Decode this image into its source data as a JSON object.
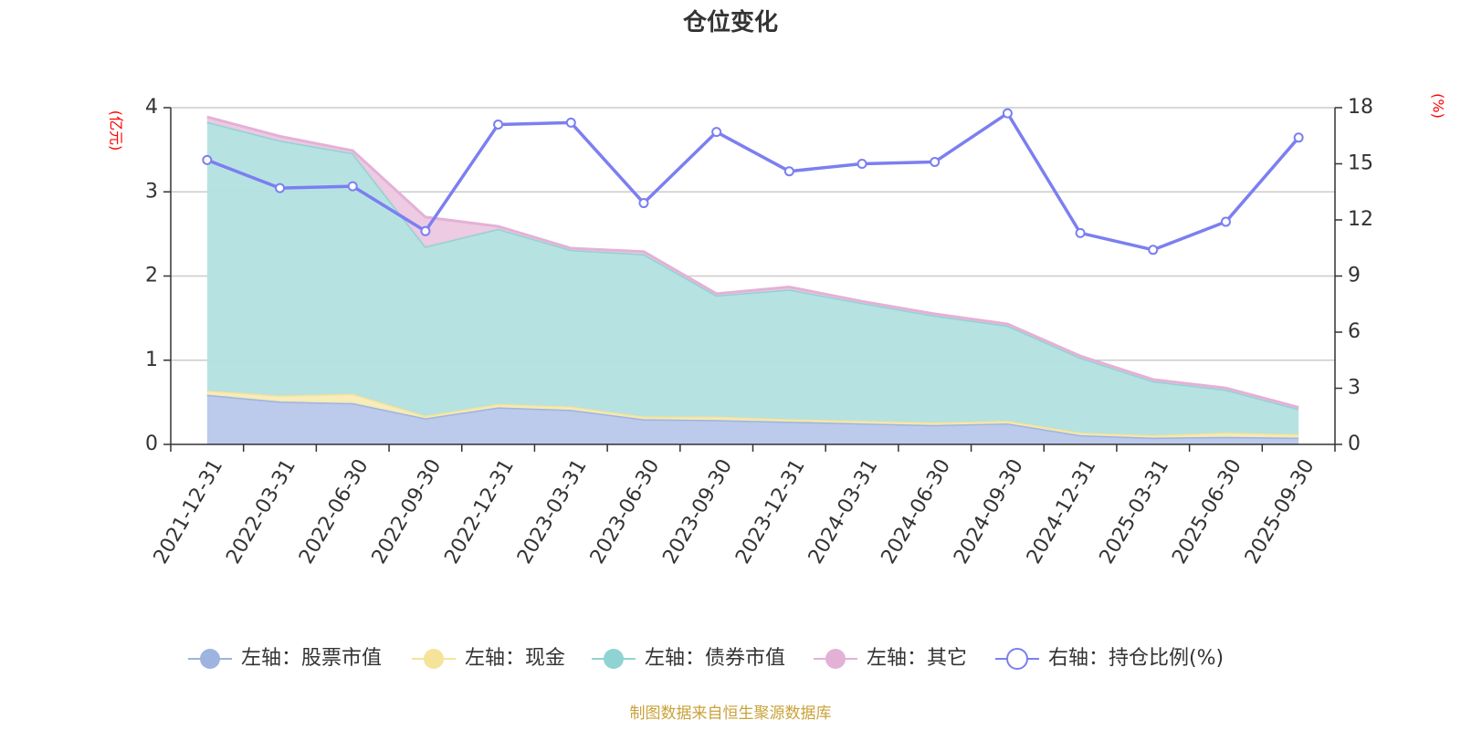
{
  "chart_data": {
    "type": "area",
    "title": "仓位变化",
    "categories": [
      "2021-12-31",
      "2022-03-31",
      "2022-06-30",
      "2022-09-30",
      "2022-12-31",
      "2023-03-31",
      "2023-06-30",
      "2023-09-30",
      "2023-12-31",
      "2024-03-31",
      "2024-06-30",
      "2024-09-30",
      "2024-12-31",
      "2025-03-31",
      "2025-06-30",
      "2025-09-30"
    ],
    "left_axis": {
      "unit": "(亿元)",
      "ylim": [
        0,
        4
      ],
      "ticks": [
        "0",
        "1",
        "2",
        "3",
        "4"
      ]
    },
    "right_axis": {
      "unit": "(%)",
      "ylim": [
        0,
        18
      ],
      "ticks": [
        "0",
        "3",
        "6",
        "9",
        "12",
        "15",
        "18"
      ]
    },
    "stacked_series": [
      {
        "name": "左轴：股票市值",
        "color": "#9db4e0",
        "fill": "#b8c7ea",
        "values": [
          0.59,
          0.51,
          0.49,
          0.31,
          0.44,
          0.41,
          0.3,
          0.29,
          0.27,
          0.25,
          0.23,
          0.25,
          0.11,
          0.08,
          0.09,
          0.08
        ]
      },
      {
        "name": "左轴：现金",
        "color": "#f5e39a",
        "fill": "#f7ebb6",
        "values": [
          0.05,
          0.07,
          0.11,
          0.03,
          0.04,
          0.04,
          0.03,
          0.04,
          0.03,
          0.03,
          0.03,
          0.03,
          0.03,
          0.03,
          0.05,
          0.04
        ]
      },
      {
        "name": "左轴：债券市值",
        "color": "#8fd3d3",
        "fill": "#b3e0e0",
        "values": [
          3.19,
          3.03,
          2.86,
          2.01,
          2.08,
          1.86,
          1.93,
          1.44,
          1.54,
          1.4,
          1.27,
          1.13,
          0.89,
          0.64,
          0.51,
          0.3
        ]
      },
      {
        "name": "左轴：其它",
        "color": "#e4b1d6",
        "fill": "#ecc8e2",
        "values": [
          0.06,
          0.05,
          0.03,
          0.35,
          0.03,
          0.02,
          0.03,
          0.02,
          0.03,
          0.02,
          0.02,
          0.02,
          0.02,
          0.02,
          0.02,
          0.02
        ]
      }
    ],
    "line_series": {
      "name": "右轴：持仓比例(%)",
      "color": "#7b7ff0",
      "values": [
        15.2,
        13.7,
        13.8,
        11.4,
        17.1,
        17.2,
        12.9,
        16.7,
        14.6,
        15.0,
        15.1,
        17.7,
        11.3,
        10.4,
        11.9,
        16.4
      ]
    },
    "grid": true,
    "legend_position": "bottom"
  },
  "source_note": "制图数据来自恒生聚源数据库"
}
